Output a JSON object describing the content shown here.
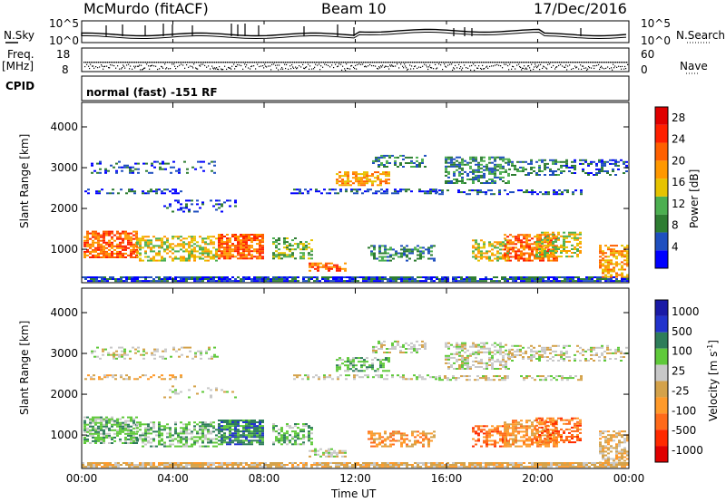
{
  "header": {
    "station": "McMurdo (fitACF)",
    "beam": "Beam 10",
    "date": "17/Dec/2016"
  },
  "left_labels": {
    "nsky": "N.Sky",
    "freq": "Freq.",
    "mhz": "[MHz]",
    "cpid": "CPID"
  },
  "right_labels": {
    "nsearch": "N.Search",
    "nave": "Nave"
  },
  "noise_axis": {
    "left": [
      "10^5",
      "10^0"
    ],
    "right": [
      "10^5",
      "10^0"
    ]
  },
  "freq_axis": {
    "left": [
      "18",
      "8"
    ],
    "right": [
      "60",
      "0"
    ]
  },
  "cpid_text": "normal (fast) -151 RF",
  "colors": {
    "power": [
      "#0000ff",
      "#1f4fbf",
      "#2e7d32",
      "#4caf50",
      "#e6c300",
      "#ff9800",
      "#ff6000",
      "#ff2000",
      "#e00000"
    ],
    "velocity": [
      "#1a1aa6",
      "#2233cc",
      "#2e7d5a",
      "#5fc93a",
      "#c8c8c8",
      "#d4a24a",
      "#ff9a2a",
      "#ff6a1a",
      "#ff2a00",
      "#e00000"
    ]
  },
  "chart_data": [
    {
      "type": "heatmap",
      "panel": "power",
      "xlabel": "",
      "ylabel": "Slant Range [km]",
      "yticks": [
        1000,
        2000,
        3000,
        4000
      ],
      "ylim": [
        180,
        4600
      ],
      "colorbar_label": "Power [dB]",
      "colorbar_ticks": [
        4,
        8,
        12,
        16,
        20,
        24,
        28
      ],
      "colorbar_range": [
        0,
        30
      ]
    },
    {
      "type": "heatmap",
      "panel": "velocity",
      "xlabel": "Time UT",
      "ylabel": "Slant Range [km]",
      "xticks": [
        "00:00",
        "04:00",
        "08:00",
        "12:00",
        "16:00",
        "20:00",
        "00:00"
      ],
      "yticks": [
        1000,
        2000,
        3000,
        4000
      ],
      "ylim": [
        180,
        4600
      ],
      "colorbar_label": "Velocity [m s",
      "colorbar_label_sup": "-1",
      "colorbar_ticks": [
        "1000",
        "500",
        "100",
        "25",
        "-25",
        "-100",
        "-500",
        "-1000"
      ]
    }
  ]
}
